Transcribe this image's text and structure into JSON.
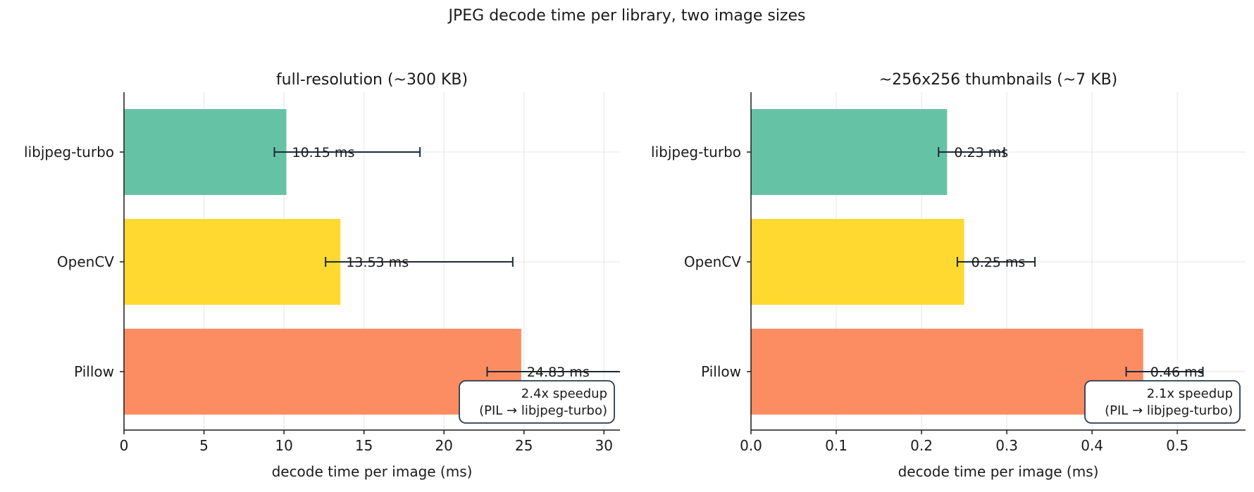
{
  "suptitle": "JPEG decode time per library, two image sizes",
  "colors": {
    "libjpeg-turbo": "#66c2a5",
    "OpenCV": "#ffd92f",
    "Pillow": "#fc8d62",
    "errorbar": "#1f2a36",
    "grid": "#e6e6e6"
  },
  "chart_data": [
    {
      "type": "bar",
      "orientation": "horizontal",
      "title": "full-resolution (~300 KB)",
      "xlabel": "decode time per image (ms)",
      "categories": [
        "libjpeg-turbo",
        "OpenCV",
        "Pillow"
      ],
      "values": [
        10.15,
        13.53,
        24.83
      ],
      "err_low": [
        9.4,
        12.6,
        22.7
      ],
      "err_high": [
        18.5,
        24.3,
        31.5
      ],
      "value_labels": [
        "10.15 ms",
        "13.53 ms",
        "24.83 ms"
      ],
      "xlim": [
        0,
        31
      ],
      "xticks": [
        0,
        5,
        10,
        15,
        20,
        25,
        30
      ],
      "xtick_labels": [
        "0",
        "5",
        "10",
        "15",
        "20",
        "25",
        "30"
      ],
      "grid": true,
      "annotation": [
        "2.4x speedup",
        "(PIL → libjpeg-turbo)"
      ],
      "annotation_placement": "bottom-right"
    },
    {
      "type": "bar",
      "orientation": "horizontal",
      "title": "~256x256 thumbnails (~7 KB)",
      "xlabel": "decode time per image (ms)",
      "categories": [
        "libjpeg-turbo",
        "OpenCV",
        "Pillow"
      ],
      "values": [
        0.23,
        0.25,
        0.46
      ],
      "err_low": [
        0.22,
        0.242,
        0.44
      ],
      "err_high": [
        0.297,
        0.333,
        0.53
      ],
      "value_labels": [
        "0.23 ms",
        "0.25 ms",
        "0.46 ms"
      ],
      "xlim": [
        0,
        0.58
      ],
      "xticks": [
        0,
        0.1,
        0.2,
        0.3,
        0.4,
        0.5
      ],
      "xtick_labels": [
        "0.0",
        "0.1",
        "0.2",
        "0.3",
        "0.4",
        "0.5"
      ],
      "grid": true,
      "annotation": [
        "2.1x speedup",
        "(PIL → libjpeg-turbo)"
      ],
      "annotation_placement": "bottom-right"
    }
  ]
}
